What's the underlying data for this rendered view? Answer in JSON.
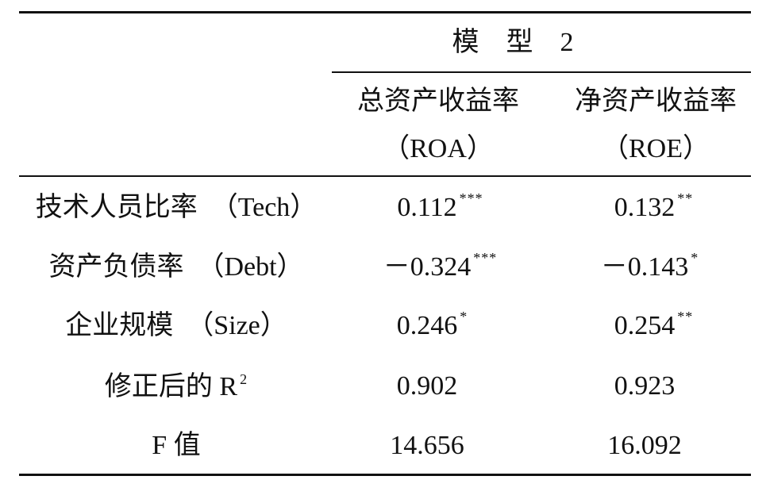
{
  "table": {
    "group_header": "模　型　2",
    "columns": [
      {
        "name": "总资产收益率",
        "abbr": "（ROA）"
      },
      {
        "name": "净资产收益率",
        "abbr": "（ROE）"
      }
    ],
    "rows": [
      {
        "label": "技术人员比率　（Tech）",
        "cells": [
          {
            "value": "0.112",
            "stars": "***"
          },
          {
            "value": "0.132",
            "stars": "**"
          }
        ]
      },
      {
        "label": "资产负债率　（Debt）",
        "cells": [
          {
            "value": "－0.324",
            "stars": "***"
          },
          {
            "value": "－0.143",
            "stars": "*"
          }
        ]
      },
      {
        "label": "企业规模　（Size）",
        "cells": [
          {
            "value": "0.246",
            "stars": "*"
          },
          {
            "value": "0.254",
            "stars": "**"
          }
        ]
      },
      {
        "label": "修正后的 R",
        "label_sup": "2",
        "cells": [
          {
            "value": "0.902"
          },
          {
            "value": "0.923"
          }
        ]
      },
      {
        "label": "F 值",
        "cells": [
          {
            "value": "14.656"
          },
          {
            "value": "16.092"
          }
        ]
      }
    ]
  }
}
